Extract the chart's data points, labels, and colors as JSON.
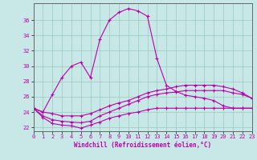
{
  "background_color": "#c8e8e8",
  "grid_color": "#99ccbb",
  "line_color": "#bb00aa",
  "spine_color": "#666666",
  "xlim": [
    0,
    23
  ],
  "ylim": [
    21.5,
    38.2
  ],
  "yticks": [
    22,
    24,
    26,
    28,
    30,
    32,
    34,
    36
  ],
  "xticks": [
    0,
    1,
    2,
    3,
    4,
    5,
    6,
    7,
    8,
    9,
    10,
    11,
    12,
    13,
    14,
    15,
    16,
    17,
    18,
    19,
    20,
    21,
    22,
    23
  ],
  "xlabel": "Windchill (Refroidissement éolien,°C)",
  "series": [
    [
      24.5,
      24.0,
      26.3,
      28.5,
      30.0,
      30.5,
      28.5,
      33.5,
      36.0,
      37.0,
      37.5,
      37.2,
      36.5,
      31.0,
      27.5,
      26.7,
      26.2,
      26.0,
      25.8,
      25.5,
      24.8,
      24.5,
      24.5,
      24.5
    ],
    [
      24.5,
      23.3,
      22.5,
      22.3,
      22.2,
      21.9,
      22.3,
      22.7,
      23.2,
      23.5,
      23.8,
      24.0,
      24.3,
      24.5,
      24.5,
      24.5,
      24.5,
      24.5,
      24.5,
      24.5,
      24.5,
      24.5,
      24.5,
      24.5
    ],
    [
      24.5,
      23.5,
      23.0,
      22.8,
      22.7,
      22.6,
      22.8,
      23.5,
      24.0,
      24.5,
      25.0,
      25.5,
      26.0,
      26.3,
      26.5,
      26.6,
      26.8,
      26.8,
      26.8,
      26.8,
      26.8,
      26.5,
      26.3,
      25.8
    ],
    [
      24.5,
      24.0,
      23.8,
      23.5,
      23.5,
      23.5,
      23.8,
      24.3,
      24.8,
      25.2,
      25.5,
      26.0,
      26.5,
      26.8,
      27.0,
      27.3,
      27.5,
      27.5,
      27.5,
      27.5,
      27.3,
      27.0,
      26.5,
      25.8
    ]
  ]
}
